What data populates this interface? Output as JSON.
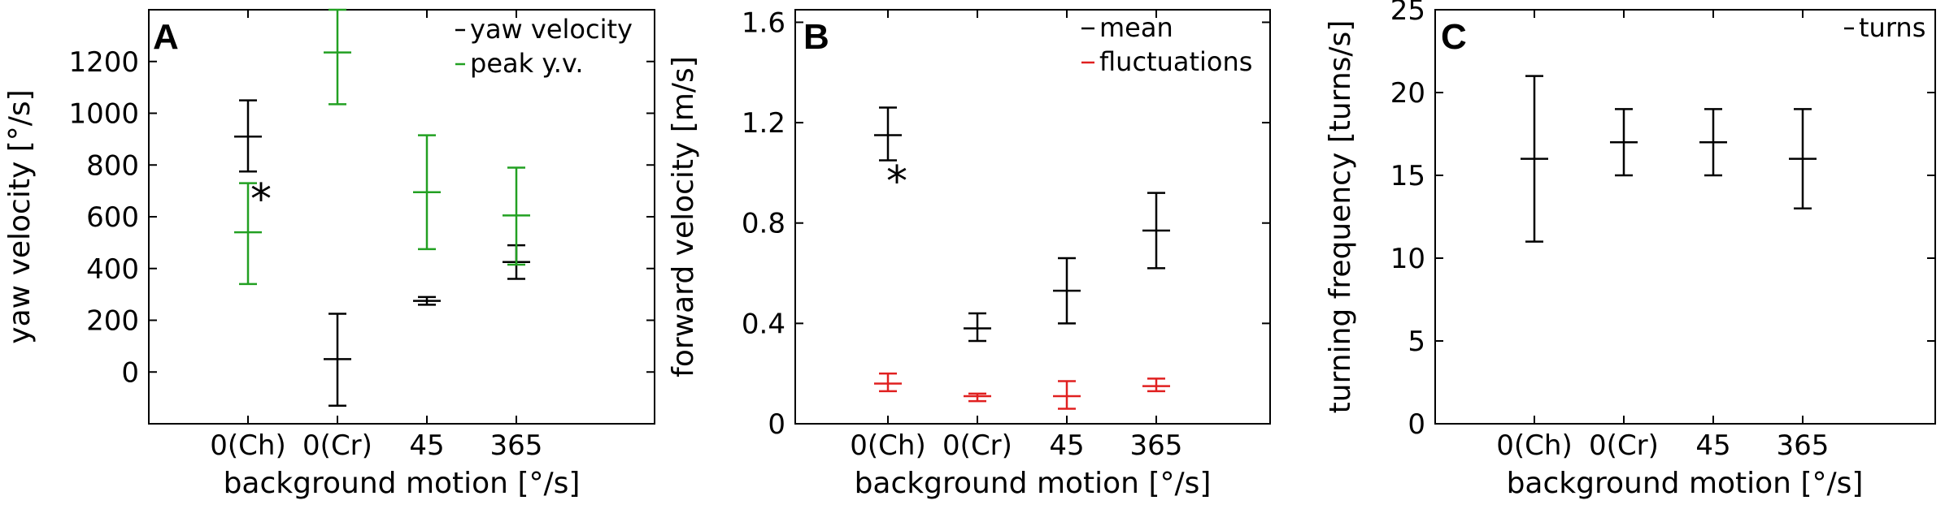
{
  "chart_data": [
    {
      "type": "scatter",
      "panel_letter": "A",
      "xlabel": "background motion [°/s]",
      "ylabel": "yaw velocity [°/s]",
      "categories": [
        "0(Ch)",
        "0(Cr)",
        "45",
        "365"
      ],
      "ylim": [
        -200,
        1400
      ],
      "yticks": [
        0,
        200,
        400,
        600,
        800,
        1000,
        1200
      ],
      "legend_position": "top-right",
      "series": [
        {
          "name": "yaw velocity",
          "color": "#000000",
          "points": [
            {
              "category": "0(Ch)",
              "mean": 910,
              "low": 775,
              "high": 1050
            },
            {
              "category": "0(Cr)",
              "mean": 50,
              "low": -130,
              "high": 225
            },
            {
              "category": "45",
              "mean": 275,
              "low": 260,
              "high": 290
            },
            {
              "category": "365",
              "mean": 425,
              "low": 360,
              "high": 490
            }
          ]
        },
        {
          "name": "peak y.v.",
          "color": "#22a022",
          "points": [
            {
              "category": "0(Ch)",
              "mean": 540,
              "low": 340,
              "high": 730
            },
            {
              "category": "0(Cr)",
              "mean": 1235,
              "low": 1035,
              "high": 1400
            },
            {
              "category": "45",
              "mean": 695,
              "low": 475,
              "high": 915
            },
            {
              "category": "365",
              "mean": 605,
              "low": 415,
              "high": 790
            }
          ]
        }
      ],
      "annotations": [
        {
          "text": "*",
          "category": "0(Ch)",
          "y": 700
        }
      ]
    },
    {
      "type": "scatter",
      "panel_letter": "B",
      "xlabel": "background motion [°/s]",
      "ylabel": "forward velocity [m/s]",
      "categories": [
        "0(Ch)",
        "0(Cr)",
        "45",
        "365"
      ],
      "ylim": [
        0,
        1.65
      ],
      "yticks": [
        "0",
        "0.4",
        "0.8",
        "1.2",
        "1.6"
      ],
      "legend_position": "top-right",
      "series": [
        {
          "name": "mean",
          "color": "#000000",
          "points": [
            {
              "category": "0(Ch)",
              "mean": 1.15,
              "low": 1.05,
              "high": 1.26
            },
            {
              "category": "0(Cr)",
              "mean": 0.38,
              "low": 0.33,
              "high": 0.44
            },
            {
              "category": "45",
              "mean": 0.53,
              "low": 0.4,
              "high": 0.66
            },
            {
              "category": "365",
              "mean": 0.77,
              "low": 0.62,
              "high": 0.92
            }
          ]
        },
        {
          "name": "fluctuations",
          "color": "#e02020",
          "points": [
            {
              "category": "0(Ch)",
              "mean": 0.16,
              "low": 0.13,
              "high": 0.2
            },
            {
              "category": "0(Cr)",
              "mean": 0.11,
              "low": 0.09,
              "high": 0.12
            },
            {
              "category": "45",
              "mean": 0.11,
              "low": 0.06,
              "high": 0.17
            },
            {
              "category": "365",
              "mean": 0.15,
              "low": 0.13,
              "high": 0.18
            }
          ]
        }
      ],
      "annotations": [
        {
          "text": "*",
          "category": "0(Ch)",
          "y": 1.0
        }
      ]
    },
    {
      "type": "scatter",
      "panel_letter": "C",
      "xlabel": "background motion [°/s]",
      "ylabel": "turning frequency [turns/s]",
      "categories": [
        "0(Ch)",
        "0(Cr)",
        "45",
        "365"
      ],
      "ylim": [
        0,
        25
      ],
      "yticks": [
        0,
        5,
        10,
        15,
        20,
        25
      ],
      "legend_position": "top-right",
      "series": [
        {
          "name": "turns",
          "color": "#000000",
          "points": [
            {
              "category": "0(Ch)",
              "mean": 16,
              "low": 11,
              "high": 21
            },
            {
              "category": "0(Cr)",
              "mean": 17,
              "low": 15,
              "high": 19
            },
            {
              "category": "45",
              "mean": 17,
              "low": 15,
              "high": 19
            },
            {
              "category": "365",
              "mean": 16,
              "low": 13,
              "high": 19
            }
          ]
        }
      ],
      "annotations": []
    }
  ]
}
